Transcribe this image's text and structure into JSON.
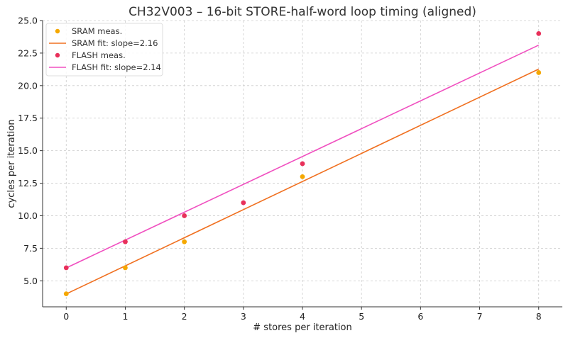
{
  "chart_data": {
    "type": "scatter",
    "title": "CH32V003 – 16-bit STORE-half-word loop timing (aligned)",
    "xlabel": "# stores per iteration",
    "ylabel": "cycles per iteration",
    "xlim": [
      -0.4,
      8.4
    ],
    "ylim": [
      3.0,
      25.0
    ],
    "xticks": [
      "0",
      "1",
      "2",
      "3",
      "4",
      "5",
      "6",
      "7",
      "8"
    ],
    "yticks": [
      "5.0",
      "7.5",
      "10.0",
      "12.5",
      "15.0",
      "17.5",
      "20.0",
      "22.5",
      "25.0"
    ],
    "grid": true,
    "legend_position": "top-left",
    "series": [
      {
        "name": "SRAM  meas.",
        "kind": "points",
        "color": "#f5a800",
        "x": [
          0,
          1,
          2,
          4,
          8
        ],
        "y": [
          4,
          6,
          8,
          13,
          21
        ]
      },
      {
        "name": "SRAM  fit: slope=2.16",
        "kind": "line",
        "color": "#f07020",
        "x": [
          0,
          8
        ],
        "y": [
          3.99,
          21.27
        ]
      },
      {
        "name": "FLASH meas.",
        "kind": "points",
        "color": "#e8305a",
        "x": [
          0,
          1,
          2,
          3,
          4,
          8
        ],
        "y": [
          6,
          8,
          10,
          11,
          14,
          24
        ]
      },
      {
        "name": "FLASH fit: slope=2.14",
        "kind": "line",
        "color": "#f050c0",
        "x": [
          0,
          8
        ],
        "y": [
          5.99,
          23.11
        ]
      }
    ]
  }
}
